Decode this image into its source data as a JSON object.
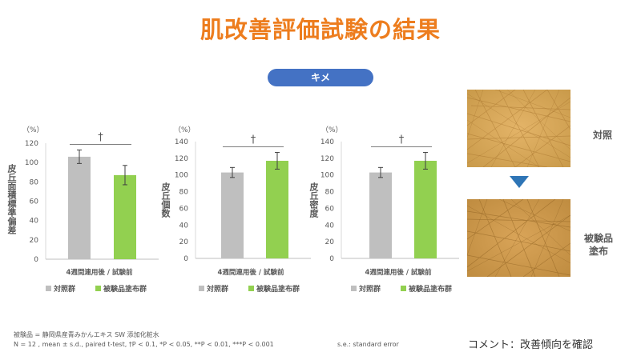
{
  "title": "肌改善評価試験の結果",
  "section_label": "キメ",
  "chart_data": [
    {
      "type": "bar",
      "unit": "（%）",
      "ylabel": "皮丘面積標準偏差",
      "xlabel": "4週間連用後 / 試験前",
      "ylim": [
        0,
        120
      ],
      "yticks": [
        0,
        20,
        40,
        60,
        80,
        100,
        120
      ],
      "categories": [
        "対照群",
        "被験品塗布群"
      ],
      "values": [
        106,
        87
      ],
      "errors": [
        7,
        10
      ],
      "colors": [
        "#BFBFBF",
        "#92D050"
      ],
      "significance": "†",
      "legend": [
        "対照群",
        "被験品塗布群"
      ]
    },
    {
      "type": "bar",
      "unit": "（%）",
      "ylabel": "皮丘個数",
      "xlabel": "4週間連用後 / 試験前",
      "ylim": [
        0,
        140
      ],
      "yticks": [
        0,
        20,
        40,
        60,
        80,
        100,
        120,
        140
      ],
      "categories": [
        "対照群",
        "被験品塗布群"
      ],
      "values": [
        103,
        117
      ],
      "errors": [
        6,
        10
      ],
      "colors": [
        "#BFBFBF",
        "#92D050"
      ],
      "significance": "†",
      "legend": [
        "対照群",
        "被験品塗布群"
      ]
    },
    {
      "type": "bar",
      "unit": "（%）",
      "ylabel": "皮丘密度",
      "xlabel": "4週間連用後 / 試験前",
      "ylim": [
        0,
        140
      ],
      "yticks": [
        0,
        20,
        40,
        60,
        80,
        100,
        120,
        140
      ],
      "categories": [
        "対照群",
        "被験品塗布群"
      ],
      "values": [
        103,
        117
      ],
      "errors": [
        6,
        10
      ],
      "colors": [
        "#BFBFBF",
        "#92D050"
      ],
      "significance": "†",
      "legend": [
        "対照群",
        "被験品塗布群"
      ]
    }
  ],
  "photos": [
    {
      "label": "対照",
      "name": "control-skin-photo"
    },
    {
      "label": "被験品\n塗布",
      "name": "test-product-skin-photo"
    }
  ],
  "arrow_color": "#2E75B6",
  "footnotes": {
    "line1": "被験品 = 静岡県産青みかんエキス SW 添加化粧水",
    "line2": "N = 12 , mean ± s.d., paired t-test, †P < 0.1, *P < 0.05, **P < 0.01, ***P < 0.001",
    "line2b": "s.e.: standard error"
  },
  "comment": "コメント：改善傾向を確認"
}
